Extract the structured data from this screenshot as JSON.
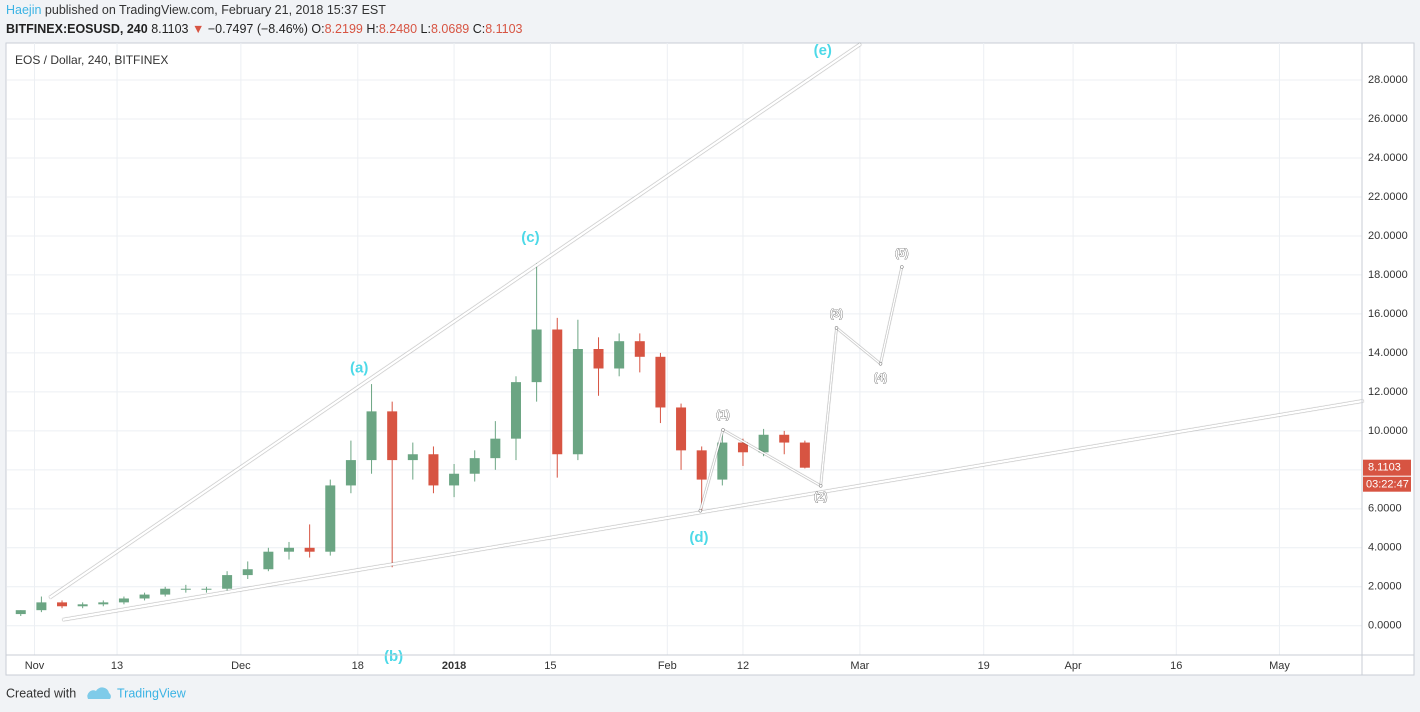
{
  "header": {
    "author": "Haejin",
    "published": "published on TradingView.com, February 21, 2018 15:37 EST",
    "symbol": "BITFINEX:EOSUSD, 240",
    "last": "8.1103",
    "arrow": "▼",
    "change": "−0.7497 (−8.46%)",
    "o_label": "O:",
    "open": "8.2199",
    "h_label": "H:",
    "high": "8.2480",
    "l_label": "L:",
    "low": "8.0689",
    "c_label": "C:",
    "close": "8.1103"
  },
  "chart_data": {
    "type": "candlestick",
    "title": "EOS / Dollar, 240, BITFINEX",
    "x": [
      -2,
      1,
      4,
      7,
      10,
      13,
      16,
      19,
      22,
      25,
      28,
      31,
      34,
      37,
      40,
      43,
      46,
      49,
      52,
      55,
      58,
      61,
      64,
      67,
      70,
      73,
      76,
      79,
      82,
      85,
      88,
      91,
      94,
      97,
      100,
      103,
      106,
      109,
      112
    ],
    "open": [
      0.6,
      0.8,
      1.2,
      1.0,
      1.1,
      1.2,
      1.4,
      1.6,
      1.9,
      1.9,
      1.9,
      2.6,
      2.9,
      3.8,
      4.0,
      3.8,
      7.2,
      8.5,
      11.0,
      8.5,
      8.8,
      7.2,
      7.8,
      8.6,
      9.6,
      12.5,
      15.2,
      8.8,
      14.2,
      13.2,
      14.6,
      13.8,
      11.2,
      9.0,
      7.5,
      9.4,
      8.9,
      9.8,
      9.4
    ],
    "high": [
      0.8,
      1.5,
      1.3,
      1.2,
      1.3,
      1.5,
      1.7,
      2.0,
      2.1,
      2.0,
      2.8,
      3.3,
      4.0,
      4.3,
      5.2,
      7.5,
      9.5,
      12.4,
      11.5,
      9.4,
      9.2,
      8.3,
      9.0,
      10.5,
      12.8,
      18.6,
      15.8,
      15.7,
      14.8,
      15.0,
      15.0,
      14.0,
      11.4,
      9.2,
      9.9,
      9.6,
      10.1,
      10.0,
      9.5
    ],
    "low": [
      0.5,
      0.7,
      0.9,
      0.9,
      1.0,
      1.1,
      1.3,
      1.5,
      1.7,
      1.7,
      1.8,
      2.4,
      2.8,
      3.4,
      3.5,
      3.6,
      6.8,
      7.8,
      3.0,
      7.5,
      6.8,
      6.6,
      7.4,
      8.0,
      8.5,
      11.5,
      7.6,
      8.5,
      11.8,
      12.8,
      13.0,
      10.4,
      8.0,
      5.9,
      7.2,
      8.2,
      8.7,
      8.8,
      8.07
    ],
    "close": [
      0.8,
      1.2,
      1.0,
      1.1,
      1.2,
      1.4,
      1.6,
      1.9,
      1.9,
      1.9,
      2.6,
      2.9,
      3.8,
      4.0,
      3.8,
      7.2,
      8.5,
      11.0,
      8.5,
      8.8,
      7.2,
      7.8,
      8.6,
      9.6,
      12.5,
      15.2,
      8.8,
      14.2,
      13.2,
      14.6,
      13.8,
      11.2,
      9.0,
      7.5,
      9.4,
      8.9,
      9.8,
      9.4,
      8.1103
    ],
    "up_color": "#6ba583",
    "down_color": "#d75442",
    "xlim": [
      -4,
      193
    ],
    "xticks": [
      {
        "value": 0,
        "label": "Nov"
      },
      {
        "value": 12,
        "label": "13"
      },
      {
        "value": 30,
        "label": "Dec"
      },
      {
        "value": 47,
        "label": "18"
      },
      {
        "value": 61,
        "label": "2018"
      },
      {
        "value": 75,
        "label": "15"
      },
      {
        "value": 92,
        "label": "Feb"
      },
      {
        "value": 103,
        "label": "12"
      },
      {
        "value": 120,
        "label": "Mar"
      },
      {
        "value": 138,
        "label": "19"
      },
      {
        "value": 151,
        "label": "Apr"
      },
      {
        "value": 166,
        "label": "16"
      },
      {
        "value": 181,
        "label": "May"
      }
    ],
    "ylim": [
      -1.5,
      29.9
    ],
    "yticks": [
      {
        "value": 0,
        "label": "0.0000"
      },
      {
        "value": 2,
        "label": "2.0000"
      },
      {
        "value": 4,
        "label": "4.0000"
      },
      {
        "value": 6,
        "label": "6.0000"
      },
      {
        "value": 8,
        "label": "8.0000"
      },
      {
        "value": 10,
        "label": "10.0000"
      },
      {
        "value": 12,
        "label": "12.0000"
      },
      {
        "value": 14,
        "label": "14.0000"
      },
      {
        "value": 16,
        "label": "16.0000"
      },
      {
        "value": 18,
        "label": "18.0000"
      },
      {
        "value": 20,
        "label": "20.0000"
      },
      {
        "value": 22,
        "label": "22.0000"
      },
      {
        "value": 24,
        "label": "24.0000"
      },
      {
        "value": 26,
        "label": "26.0000"
      },
      {
        "value": 28,
        "label": "28.0000"
      }
    ],
    "grid": true,
    "price_tag": 8.1103,
    "countdown": "03:22:47",
    "trendlines": [
      {
        "x": [
          2.2,
          120.1
        ],
        "y": [
          1.44,
          29.85
        ]
      },
      {
        "x": [
          4.1,
          193.2
        ],
        "y": [
          0.31,
          11.54
        ]
      }
    ],
    "wave_path": {
      "x": [
        96.8,
        100.1,
        114.3,
        116.6,
        123,
        126.1
      ],
      "y": [
        5.9,
        10.05,
        7.18,
        15.28,
        13.44,
        18.41
      ]
    },
    "wave_labels": [
      {
        "text": "(a)",
        "x": 47.2,
        "y": 13.2,
        "color": "#4dd9e8"
      },
      {
        "text": "(b)",
        "x": 52.2,
        "y": -1.6,
        "color": "#4dd9e8"
      },
      {
        "text": "(c)",
        "x": 72.1,
        "y": 19.9,
        "color": "#4dd9e8"
      },
      {
        "text": "(d)",
        "x": 96.6,
        "y": 4.5,
        "color": "#4dd9e8"
      },
      {
        "text": "(e)",
        "x": 114.6,
        "y": 29.5,
        "color": "#4dd9e8"
      },
      {
        "text": "(1)",
        "x": 100.1,
        "y": 10.8,
        "color": "#ffffff"
      },
      {
        "text": "(2)",
        "x": 114.3,
        "y": 6.6,
        "color": "#ffffff"
      },
      {
        "text": "(3)",
        "x": 116.6,
        "y": 16.0,
        "color": "#ffffff"
      },
      {
        "text": "(4)",
        "x": 123,
        "y": 12.7,
        "color": "#ffffff"
      },
      {
        "text": "(5)",
        "x": 126.1,
        "y": 19.1,
        "color": "#ffffff"
      }
    ]
  },
  "footer": {
    "created": "Created with",
    "brand": "TradingView"
  }
}
